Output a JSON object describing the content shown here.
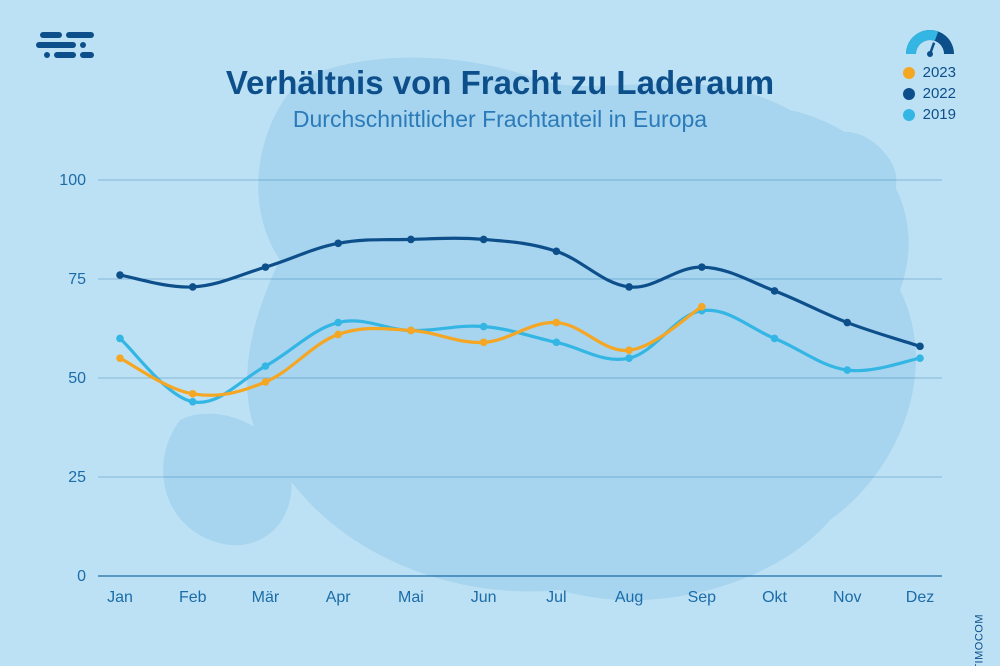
{
  "background_color": "#bde1f4",
  "map_silhouette_color": "#a7d4ee",
  "brand_dark": "#0d4f8b",
  "title": "Verhältnis von Fracht zu Laderaum",
  "title_color": "#0d4f8b",
  "title_fontsize": 33,
  "subtitle": "Durchschnittlicher Frachtanteil in Europa",
  "subtitle_color": "#2b7bb9",
  "subtitle_fontsize": 23,
  "copyright": "© TIMOCOM",
  "copyright_color": "#0d4f8b",
  "gauge": {
    "track_color": "#0d4f8b",
    "fill_color": "#34b6e4",
    "needle_color": "#0d4f8b"
  },
  "legend": [
    {
      "label": "2023",
      "color": "#f5a623"
    },
    {
      "label": "2022",
      "color": "#0d4f8b"
    },
    {
      "label": "2019",
      "color": "#34b6e4"
    }
  ],
  "chart": {
    "type": "line",
    "categories": [
      "Jan",
      "Feb",
      "Mär",
      "Apr",
      "Mai",
      "Jun",
      "Jul",
      "Aug",
      "Sep",
      "Okt",
      "Nov",
      "Dez"
    ],
    "ylim": [
      0,
      100
    ],
    "yticks": [
      0,
      25,
      50,
      75,
      100
    ],
    "axis_color": "#1b6ca8",
    "axis_fontsize": 16,
    "grid_color": "#1b6ca8",
    "grid_opacity": 0.35,
    "grid_width": 1,
    "line_width": 3.2,
    "marker_radius": 3.8,
    "series": [
      {
        "name": "2022",
        "color": "#0d4f8b",
        "values": [
          76,
          73,
          78,
          84,
          85,
          85,
          82,
          73,
          78,
          72,
          64,
          58
        ]
      },
      {
        "name": "2019",
        "color": "#34b6e4",
        "values": [
          60,
          44,
          53,
          64,
          62,
          63,
          59,
          55,
          67,
          60,
          52,
          55
        ]
      },
      {
        "name": "2023",
        "color": "#f5a623",
        "values": [
          55,
          46,
          49,
          61,
          62,
          59,
          64,
          57,
          68,
          null,
          null,
          null
        ]
      }
    ]
  }
}
